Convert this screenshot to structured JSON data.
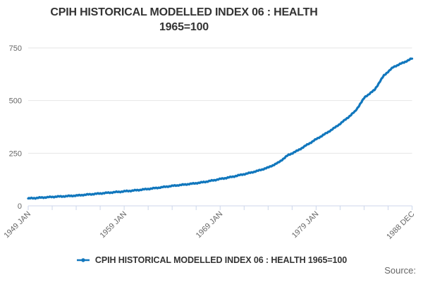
{
  "title": {
    "text_line1": "CPIH HISTORICAL MODELLED INDEX 06 : HEALTH",
    "text_line2": "1965=100"
  },
  "legend": {
    "label": "CPIH HISTORICAL MODELLED INDEX 06 : HEALTH 1965=100"
  },
  "source_label": "Source:",
  "colors": {
    "line": "#1177bd",
    "grid": "#e6e6e6",
    "axis": "#ccd6eb",
    "tick_label": "#666666",
    "title_text": "#333333",
    "legend_text": "#333333",
    "source_text": "#666666"
  },
  "chart_data": {
    "type": "line",
    "title": "CPIH HISTORICAL MODELLED INDEX 06 : HEALTH 1965=100",
    "xlabel": "",
    "ylabel": "",
    "ylim": [
      0,
      750
    ],
    "yticks": [
      0,
      250,
      500,
      750
    ],
    "grid": true,
    "legend_position": "bottom-center",
    "frequency": "monthly",
    "x_range": [
      "1949 JAN",
      "1988 DEC"
    ],
    "x_minor_tick_count": 17,
    "xtick_major_labels": [
      "1949 JAN",
      "1959 JAN",
      "1969 JAN",
      "1979 JAN",
      "1988 DEC"
    ],
    "xtick_major_positions": [
      0,
      4,
      8,
      12,
      16
    ],
    "series": [
      {
        "name": "CPIH HISTORICAL MODELLED INDEX 06 : HEALTH 1965=100",
        "years": [
          1949,
          1950,
          1951,
          1952,
          1953,
          1954,
          1955,
          1956,
          1957,
          1958,
          1959,
          1960,
          1961,
          1962,
          1963,
          1964,
          1965,
          1966,
          1967,
          1968,
          1969,
          1970,
          1971,
          1972,
          1973,
          1974,
          1975,
          1976,
          1977,
          1978,
          1979,
          1980,
          1981,
          1982,
          1983,
          1984,
          1985,
          1986,
          1987,
          1988,
          1988.92
        ],
        "values": [
          35,
          38,
          41,
          44,
          46,
          49,
          53,
          57,
          61,
          65,
          69,
          73,
          78,
          83,
          89,
          95,
          100,
          105,
          111,
          119,
          128,
          136,
          146,
          156,
          168,
          183,
          205,
          240,
          262,
          290,
          318,
          345,
          375,
          410,
          449,
          516,
          550,
          620,
          660,
          680,
          700
        ]
      }
    ]
  }
}
